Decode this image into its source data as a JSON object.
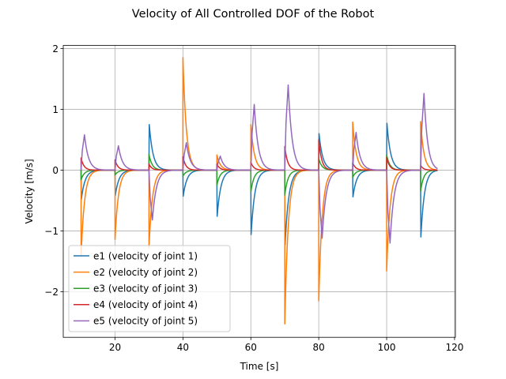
{
  "chart_data": {
    "type": "line",
    "title": "Velocity of All Controlled DOF of the Robot",
    "xlabel": "Time [s]",
    "ylabel": "Velocity [m/s]",
    "xlim": [
      4.75,
      120.25
    ],
    "ylim": [
      -2.75,
      2.05
    ],
    "xticks": [
      20,
      40,
      60,
      80,
      100,
      120
    ],
    "xtick_labels": [
      "20",
      "40",
      "60",
      "80",
      "100",
      "120"
    ],
    "yticks": [
      -2,
      -1,
      0,
      1,
      2
    ],
    "ytick_labels": [
      "−2",
      "−1",
      "0",
      "1",
      "2"
    ],
    "grid": true,
    "legend_position": "lower-left",
    "segment_starts": [
      10,
      20,
      30,
      40,
      50,
      60,
      70,
      80,
      90,
      100,
      110
    ],
    "end_time": 115,
    "series": [
      {
        "name": "e1 (velocity of joint 1)",
        "color": "#1f77b4",
        "tau": 1.2,
        "peak_offset": 0.08,
        "peaks": [
          -0.48,
          -0.42,
          0.75,
          -0.43,
          -0.76,
          -1.06,
          -1.23,
          0.6,
          -0.44,
          0.77,
          -1.1
        ]
      },
      {
        "name": "e2 (velocity of joint 2)",
        "color": "#ff7f0e",
        "tau": 1.1,
        "peak_offset": 0.0,
        "peaks": [
          -1.42,
          -1.14,
          -1.28,
          1.85,
          0.25,
          0.75,
          -2.53,
          -2.15,
          0.79,
          -1.66,
          0.8
        ]
      },
      {
        "name": "e3 (velocity of joint 3)",
        "color": "#2ca02c",
        "tau": 1.0,
        "peak_offset": 0.0,
        "peaks": [
          -0.16,
          -0.08,
          0.26,
          -0.1,
          -0.25,
          -0.36,
          -0.41,
          0.19,
          -0.12,
          0.25,
          -0.35
        ]
      },
      {
        "name": "e4 (velocity of joint 4)",
        "color": "#d62728",
        "tau": 0.9,
        "peak_offset": 0.0,
        "peaks": [
          0.2,
          0.17,
          0.1,
          0.22,
          0.1,
          0.13,
          0.39,
          0.5,
          0.12,
          0.21,
          0.08
        ]
      },
      {
        "name": "e5 (velocity of joint 5)",
        "color": "#9467bd",
        "tau": 1.3,
        "peak_offset": 1.0,
        "peaks": [
          0.58,
          0.4,
          -0.82,
          0.45,
          0.23,
          1.08,
          1.4,
          -1.12,
          0.62,
          -1.2,
          1.26
        ]
      }
    ]
  }
}
